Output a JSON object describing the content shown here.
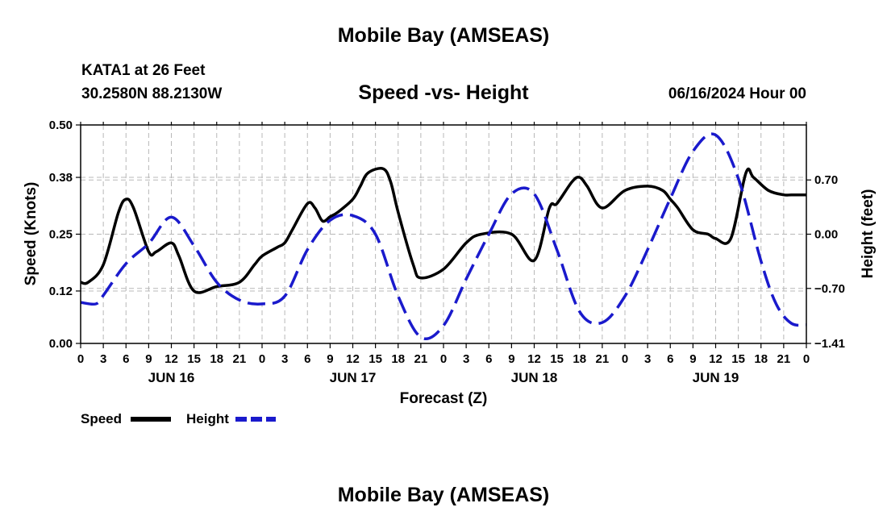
{
  "header": {
    "main_title": "Mobile Bay (AMSEAS)",
    "station": "KATA1 at 26 Feet",
    "coords": "30.2580N  88.2130W",
    "plot_title": "Speed -vs- Height",
    "datetime": "06/16/2024 Hour 00"
  },
  "footer": {
    "repeat_title": "Mobile Bay (AMSEAS)"
  },
  "colors": {
    "speed": "#000000",
    "height": "#1a1acc",
    "grid": "#b8b8b8"
  },
  "chart_data": {
    "type": "line",
    "title": "Speed -vs- Height",
    "xlabel": "Forecast (Z)",
    "ylabel": "Speed (Knots)",
    "y2label": "Height (feet)",
    "x_range": [
      0,
      96
    ],
    "ylim": [
      0,
      0.5
    ],
    "y2lim": [
      -1.41,
      1.41
    ],
    "y_ticks": [
      0.0,
      0.12,
      0.25,
      0.38,
      0.5
    ],
    "y_tick_labels": [
      "0.00",
      "0.12",
      "0.25",
      "0.38",
      "0.50"
    ],
    "y2_ticks": [
      -1.41,
      -0.7,
      0.0,
      0.7
    ],
    "y2_tick_labels": [
      "-1.41",
      "-0.70",
      "0.00",
      "0.70"
    ],
    "x_ticks": [
      0,
      3,
      6,
      9,
      12,
      15,
      18,
      21,
      24,
      27,
      30,
      33,
      36,
      39,
      42,
      45,
      48,
      51,
      54,
      57,
      60,
      63,
      66,
      69,
      72,
      75,
      78,
      81,
      84,
      87,
      90,
      93,
      96
    ],
    "x_tick_labels": [
      "0",
      "3",
      "6",
      "9",
      "12",
      "15",
      "18",
      "21",
      "0",
      "3",
      "6",
      "9",
      "12",
      "15",
      "18",
      "21",
      "0",
      "3",
      "6",
      "9",
      "12",
      "15",
      "18",
      "21",
      "0",
      "3",
      "6",
      "9",
      "12",
      "15",
      "18",
      "21",
      "0"
    ],
    "date_labels": [
      {
        "x": 12,
        "label": "JUN 16"
      },
      {
        "x": 36,
        "label": "JUN 17"
      },
      {
        "x": 60,
        "label": "JUN 18"
      },
      {
        "x": 84,
        "label": "JUN 19"
      }
    ],
    "legend": [
      {
        "name": "Speed",
        "style": "solid"
      },
      {
        "name": "Height",
        "style": "dashed"
      }
    ],
    "series": [
      {
        "name": "Speed",
        "axis": "left",
        "x": [
          0,
          1,
          3,
          5,
          6,
          7,
          9,
          10,
          12,
          13,
          15,
          18,
          21,
          23,
          24,
          26,
          27,
          28,
          30,
          31,
          32,
          33,
          34,
          36,
          37,
          38,
          40,
          41,
          42,
          44,
          45,
          48,
          51,
          53,
          57,
          60,
          62,
          63,
          65,
          66,
          67,
          69,
          72,
          75,
          77,
          78,
          79,
          81,
          83,
          84,
          86,
          88,
          89,
          91,
          93,
          94,
          96
        ],
        "y": [
          0.14,
          0.14,
          0.18,
          0.3,
          0.33,
          0.31,
          0.21,
          0.21,
          0.23,
          0.2,
          0.12,
          0.13,
          0.14,
          0.18,
          0.2,
          0.22,
          0.23,
          0.26,
          0.32,
          0.31,
          0.28,
          0.29,
          0.3,
          0.33,
          0.36,
          0.39,
          0.4,
          0.37,
          0.3,
          0.18,
          0.15,
          0.17,
          0.23,
          0.25,
          0.25,
          0.19,
          0.31,
          0.32,
          0.37,
          0.38,
          0.36,
          0.31,
          0.35,
          0.36,
          0.35,
          0.33,
          0.31,
          0.26,
          0.25,
          0.24,
          0.24,
          0.39,
          0.38,
          0.35,
          0.34,
          0.34,
          0.34
        ]
      },
      {
        "name": "Height",
        "axis": "right",
        "x": [
          0,
          2,
          3,
          6,
          9,
          12,
          15,
          18,
          21,
          24,
          27,
          30,
          33,
          36,
          39,
          42,
          45,
          48,
          51,
          54,
          57,
          60,
          63,
          66,
          69,
          72,
          75,
          78,
          81,
          84,
          87,
          90,
          92,
          94,
          96
        ],
        "y": [
          -0.88,
          -0.9,
          -0.79,
          -0.38,
          -0.12,
          0.22,
          -0.15,
          -0.62,
          -0.85,
          -0.9,
          -0.8,
          -0.2,
          0.18,
          0.24,
          0.0,
          -0.8,
          -1.33,
          -1.18,
          -0.58,
          0.0,
          0.52,
          0.52,
          -0.2,
          -1.0,
          -1.14,
          -0.8,
          -0.2,
          0.46,
          1.07,
          1.28,
          0.72,
          -0.35,
          -0.9,
          -1.15,
          -1.17
        ]
      }
    ]
  }
}
